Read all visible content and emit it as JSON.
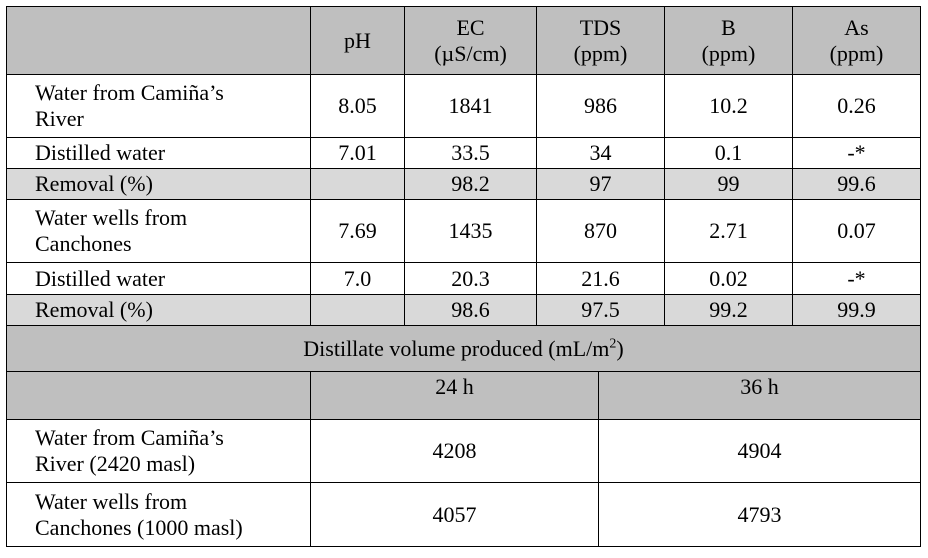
{
  "header": {
    "ph": "pH",
    "ec": [
      "EC",
      "(µS/cm)"
    ],
    "tds": [
      "TDS",
      "(ppm)"
    ],
    "b": [
      "B",
      "(ppm)"
    ],
    "as": [
      "As",
      "(ppm)"
    ]
  },
  "rows": [
    {
      "label": [
        "Water from Camiña’s",
        "River"
      ],
      "ph": "8.05",
      "ec": "1841",
      "tds": "986",
      "b": "10.2",
      "as": "0.26"
    },
    {
      "label": [
        "Distilled water"
      ],
      "ph": "7.01",
      "ec": "33.5",
      "tds": "34",
      "b": "0.1",
      "as": "-*"
    },
    {
      "label": [
        "Removal (%)"
      ],
      "ph": "",
      "ec": "98.2",
      "tds": "97",
      "b": "99",
      "as": "99.6"
    },
    {
      "label": [
        "Water wells from",
        "Canchones"
      ],
      "ph": "7.69",
      "ec": "1435",
      "tds": "870",
      "b": "2.71",
      "as": "0.07"
    },
    {
      "label": [
        "Distilled water"
      ],
      "ph": "7.0",
      "ec": "20.3",
      "tds": "21.6",
      "b": "0.02",
      "as": "-*"
    },
    {
      "label": [
        "Removal (%)"
      ],
      "ph": "",
      "ec": "98.6",
      "tds": "97.5",
      "b": "99.2",
      "as": "99.9"
    }
  ],
  "volume": {
    "title": "Distillate volume produced (mL/m",
    "title_sup": "2",
    "title_end": ")",
    "col_24": "24 h",
    "col_36": "36 h",
    "rows": [
      {
        "label": [
          "Water from Camiña’s",
          "River (2420 masl)"
        ],
        "v24": "4208",
        "v36": "4904"
      },
      {
        "label": [
          "Water wells from",
          "Canchones (1000 masl)"
        ],
        "v24": "4057",
        "v36": "4793"
      }
    ]
  }
}
